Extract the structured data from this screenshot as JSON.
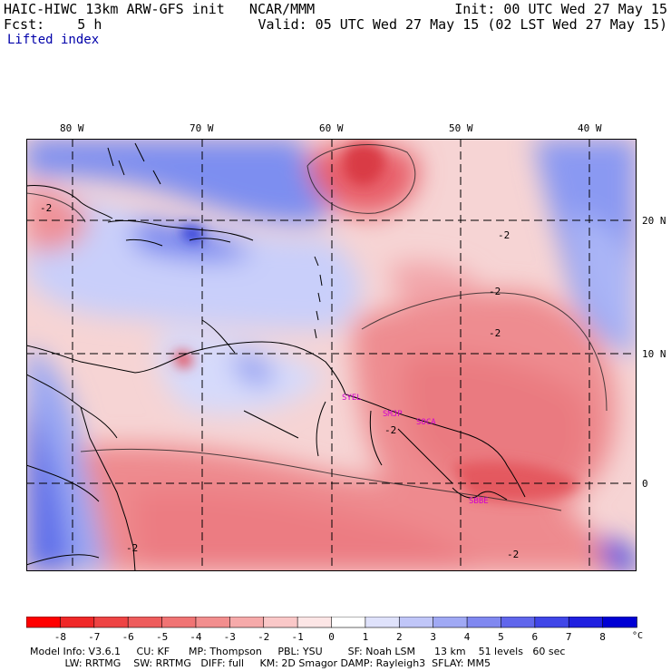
{
  "header": {
    "line1_left": "HAIC-HIWC 13km ARW-GFS init   NCAR/MMM",
    "line1_right": "Init: 00 UTC Wed 27 May 15",
    "line2_left": "Fcst:    5 h",
    "line2_right": "Valid: 05 UTC Wed 27 May 15 (02 LST Wed 27 May 15)",
    "field_name": "Lifted index"
  },
  "map": {
    "lon_labels": [
      "80 W",
      "70 W",
      "60 W",
      "50 W",
      "40 W"
    ],
    "lat_labels": [
      "20 N",
      "10 N",
      "0"
    ],
    "contour_label": "-2",
    "stations": [
      "SYEL",
      "SMJP",
      "SOCA",
      "SBBE"
    ],
    "colors": {
      "negative": "#e8505a",
      "positive": "#4a5ef0",
      "station": "#d000d0"
    }
  },
  "colorbar": {
    "labels": [
      "-8",
      "-7",
      "-6",
      "-5",
      "-4",
      "-3",
      "-2",
      "-1",
      "0",
      "1",
      "2",
      "3",
      "4",
      "5",
      "6",
      "7",
      "8"
    ],
    "unit": "°C",
    "colors": [
      "#ff0000",
      "#f02828",
      "#ee4444",
      "#ee5c5c",
      "#f07474",
      "#f28e8e",
      "#f6aaaa",
      "#fac8c8",
      "#fde6e6",
      "#ffffff",
      "#dfe2fb",
      "#c0c6f8",
      "#a0a9f4",
      "#8088f0",
      "#6066ec",
      "#4046e8",
      "#2020e0",
      "#0000d4"
    ]
  },
  "footer": {
    "line1": "Model Info: V3.6.1     CU: KF      MP: Thompson     PBL: YSU        SF: Noah LSM      13 km    51 levels   60 sec",
    "line2": "           LW: RRTMG    SW: RRTMG   DIFF: full     KM: 2D Smagor DAMP: Rayleigh3  SFLAY: MM5"
  }
}
